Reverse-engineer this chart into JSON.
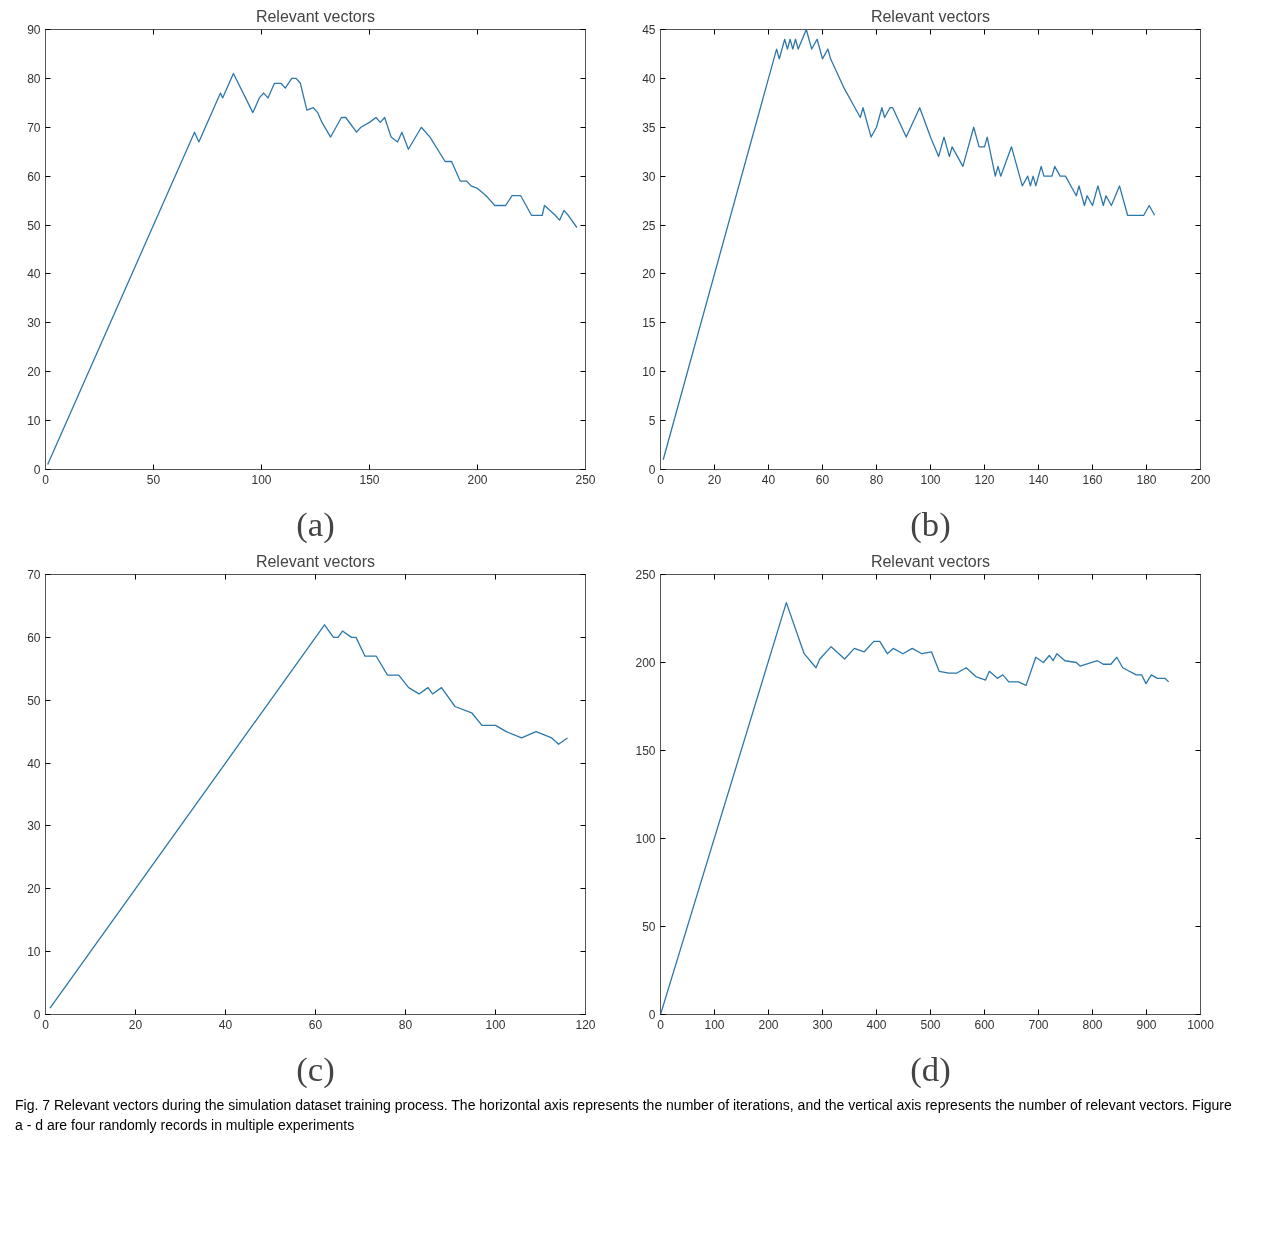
{
  "chart_data": [
    {
      "type": "line",
      "title": "Relevant vectors",
      "xlabel": "(a)",
      "color": "#2e77aa",
      "x": [
        1,
        69,
        71,
        81,
        82,
        87,
        96,
        99,
        101,
        103,
        106,
        109,
        111,
        114,
        116,
        118,
        121,
        124,
        126,
        128,
        132,
        137,
        139,
        144,
        146,
        150,
        153,
        155,
        157,
        160,
        163,
        165,
        168,
        174,
        178,
        185,
        188,
        192,
        195,
        197,
        200,
        204,
        206,
        208,
        213,
        216,
        220,
        225,
        230,
        231,
        236,
        238,
        240,
        242,
        246
      ],
      "values": [
        1,
        69,
        67,
        77,
        76,
        81,
        73,
        76,
        77,
        76,
        79,
        79,
        78,
        80,
        80,
        79,
        73.5,
        74,
        73,
        71,
        68,
        72,
        72,
        69,
        70,
        71,
        72,
        71,
        72,
        68,
        67,
        69,
        65.5,
        70,
        68,
        63,
        63,
        59,
        59,
        58,
        57.5,
        56,
        55,
        54,
        54,
        56,
        56,
        52,
        52,
        54,
        52,
        51,
        53,
        52,
        49.5
      ],
      "xlim": [
        0,
        250
      ],
      "ylim": [
        0,
        90
      ],
      "xticks": [
        0,
        50,
        100,
        150,
        200,
        250
      ],
      "yticks": [
        0,
        10,
        20,
        30,
        40,
        50,
        60,
        70,
        80,
        90
      ],
      "grid": false,
      "line_style": "solid"
    },
    {
      "type": "line",
      "title": "Relevant vectors",
      "xlabel": "(b)",
      "color": "#2e77aa",
      "x": [
        1,
        43,
        44,
        46,
        47,
        48,
        49,
        50,
        51,
        54,
        56,
        58,
        60,
        62,
        63,
        68,
        72,
        74,
        75,
        78,
        80,
        82,
        83,
        85,
        86,
        91,
        96,
        100,
        103,
        105,
        107,
        108,
        112,
        116,
        118,
        120,
        121,
        124,
        125,
        126,
        130,
        134,
        136,
        137,
        138,
        139,
        141,
        142,
        145,
        146,
        148,
        150,
        152,
        154,
        155,
        157,
        158,
        160,
        162,
        164,
        165,
        167,
        170,
        173,
        179,
        181,
        183
      ],
      "values": [
        1,
        43,
        42,
        44,
        43,
        44,
        43,
        44,
        43,
        45,
        43,
        44,
        42,
        43,
        42,
        39,
        37,
        36,
        37,
        34,
        35,
        37,
        36,
        37,
        37,
        34,
        37,
        34,
        32,
        34,
        32,
        33,
        31,
        35,
        33,
        33,
        34,
        30,
        31,
        30,
        33,
        29,
        30,
        29,
        30,
        29,
        31,
        30,
        30,
        31,
        30,
        30,
        29,
        28,
        29,
        27,
        28,
        27,
        29,
        27,
        28,
        27,
        29,
        26,
        26,
        27,
        26
      ],
      "xlim": [
        0,
        200
      ],
      "ylim": [
        0,
        45
      ],
      "xticks": [
        0,
        20,
        40,
        60,
        80,
        100,
        120,
        140,
        160,
        180,
        200
      ],
      "yticks": [
        0,
        5,
        10,
        15,
        20,
        25,
        30,
        35,
        40,
        45
      ],
      "grid": false,
      "line_style": "solid"
    },
    {
      "type": "line",
      "title": "Relevant vectors",
      "xlabel": "(c)",
      "color": "#2e77aa",
      "x": [
        1,
        62,
        64,
        65,
        66,
        68,
        69,
        71,
        73.5,
        76,
        78.5,
        80.7,
        83,
        85,
        86,
        88,
        91,
        94.7,
        97,
        100,
        102.4,
        105.8,
        109,
        112.5,
        114,
        116
      ],
      "values": [
        1,
        62,
        60,
        60,
        61,
        60,
        60,
        57,
        57,
        54,
        54,
        52,
        51,
        52,
        51,
        52,
        49,
        48,
        46,
        46,
        45,
        44,
        45,
        44,
        43,
        44
      ],
      "xlim": [
        0,
        120
      ],
      "ylim": [
        0,
        70
      ],
      "xticks": [
        0,
        20,
        40,
        60,
        80,
        100,
        120
      ],
      "yticks": [
        0,
        10,
        20,
        30,
        40,
        50,
        60,
        70
      ],
      "grid": false,
      "line_style": "solid"
    },
    {
      "type": "line",
      "title": "Relevant vectors",
      "xlabel": "(d)",
      "color": "#2e77aa",
      "x": [
        0,
        233,
        266,
        288,
        295,
        316,
        341,
        359,
        377,
        395,
        406,
        420,
        431,
        449,
        466,
        484,
        502,
        516,
        534,
        549,
        566,
        584,
        602,
        609,
        624,
        634,
        645,
        663,
        677,
        695,
        709,
        720,
        727,
        734,
        749,
        770,
        777,
        809,
        820,
        834,
        845,
        856,
        881,
        891,
        899,
        909,
        920,
        934,
        941
      ],
      "values": [
        0,
        234,
        205,
        197,
        202,
        209,
        202,
        208,
        206,
        212,
        212,
        205,
        208,
        205,
        208,
        205,
        206,
        195,
        194,
        194,
        197,
        192,
        190,
        195,
        191,
        193,
        189,
        189,
        187,
        203,
        200,
        204,
        201,
        205,
        201,
        200,
        198,
        201,
        199,
        199,
        203,
        197,
        193,
        193,
        188,
        193,
        191,
        191,
        189
      ],
      "xlim": [
        0,
        1000
      ],
      "ylim": [
        0,
        250
      ],
      "xticks": [
        0,
        100,
        200,
        300,
        400,
        500,
        600,
        700,
        800,
        900,
        1000
      ],
      "yticks": [
        0,
        50,
        100,
        150,
        200,
        250
      ],
      "grid": false,
      "line_style": "solid",
      "annotations": [
        "Fig. 7 Relevant vectors during the simulation dataset training process. The horizontal axis represents the number of iterations, and the vertical axis represents the number of relevant vectors. Figure a - d are four randomly records in multiple experiments"
      ]
    }
  ]
}
